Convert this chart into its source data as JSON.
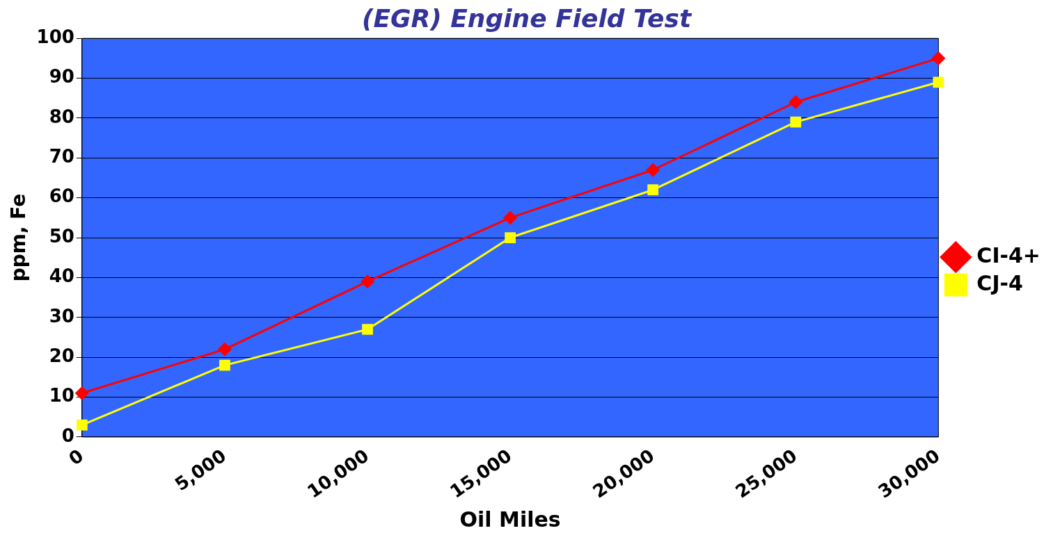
{
  "chart_data": {
    "type": "line",
    "title": "(EGR) Engine Field Test",
    "xlabel": "Oil Miles",
    "ylabel": "ppm, Fe",
    "categories": [
      "0",
      "5,000",
      "10,000",
      "15,000",
      "20,000",
      "25,000",
      "30,000"
    ],
    "series": [
      {
        "name": "CI-4+",
        "color": "#ff0000",
        "marker": "diamond",
        "values": [
          11,
          22,
          39,
          55,
          67,
          84,
          95
        ]
      },
      {
        "name": "CJ-4",
        "color": "#ffff00",
        "marker": "square",
        "values": [
          3,
          18,
          27,
          50,
          62,
          79,
          89
        ]
      }
    ],
    "ylim": [
      0,
      100
    ],
    "yticks": [
      0,
      10,
      20,
      30,
      40,
      50,
      60,
      70,
      80,
      90,
      100
    ],
    "grid": "y",
    "legend": "right",
    "line_style": "solid"
  }
}
